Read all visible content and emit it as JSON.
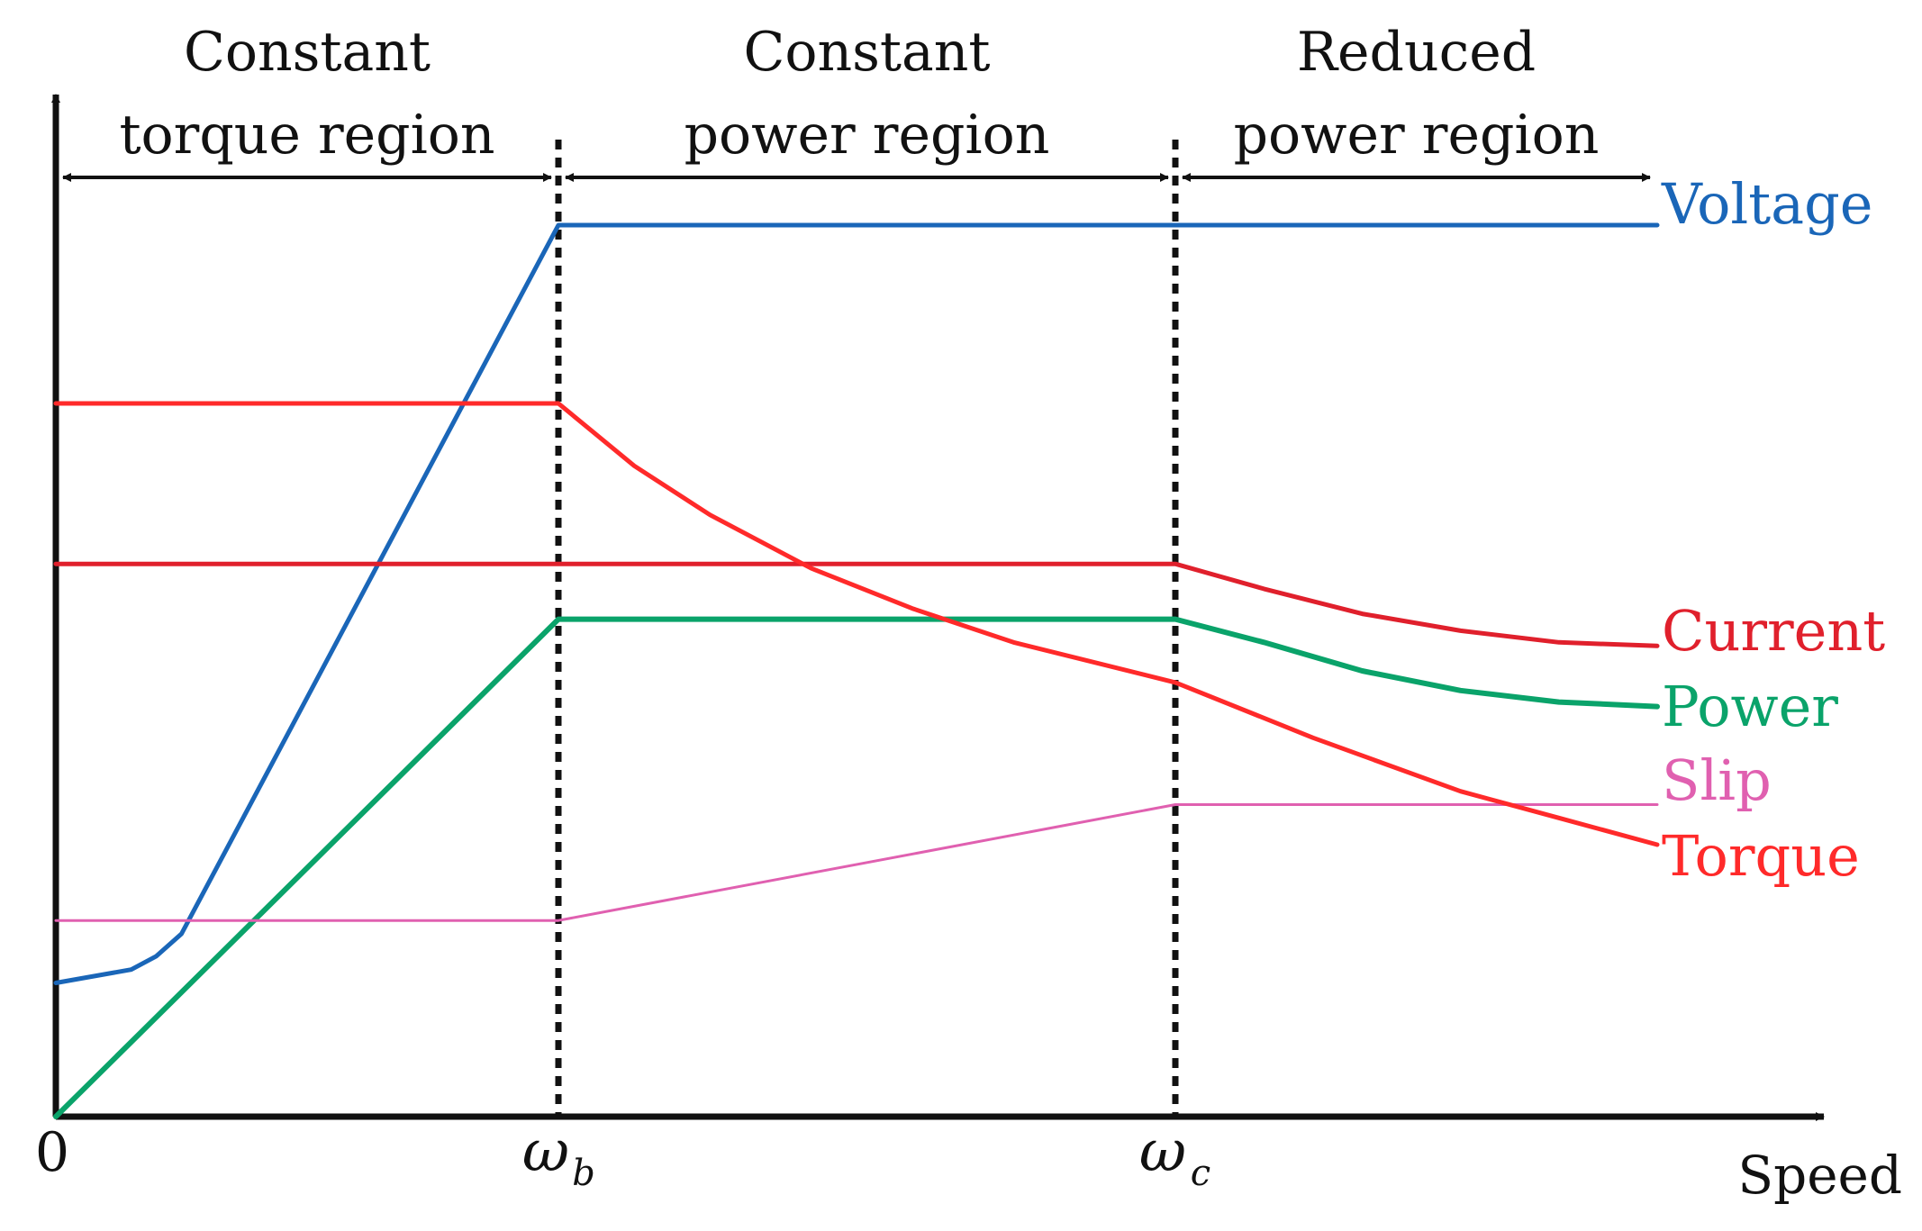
{
  "chart_data": {
    "type": "line",
    "title": "",
    "xlabel": "Speed",
    "ylabel": "",
    "x_ticks": [
      {
        "label": "0",
        "value": 0
      },
      {
        "label": "ω",
        "sub": "b",
        "value": 1.0
      },
      {
        "label": "ω",
        "sub": "c",
        "value": 2.22
      }
    ],
    "xlim": [
      0,
      3.55
    ],
    "ylim": [
      0,
      1.05
    ],
    "regions": [
      {
        "line1": "Constant",
        "line2": "torque region",
        "from": 0,
        "to": 1.0
      },
      {
        "line1": "Constant",
        "line2": "power region",
        "from": 1.0,
        "to": 2.22
      },
      {
        "line1": "Reduced",
        "line2": "power region",
        "from": 2.22,
        "to": 3.2
      }
    ],
    "series": [
      {
        "name": "Voltage",
        "color": "#1a66b8",
        "x": [
          0,
          0.15,
          0.2,
          0.25,
          1.0,
          3.2
        ],
        "y": [
          0.15,
          0.165,
          0.18,
          0.205,
          1.0,
          1.0
        ]
      },
      {
        "name": "Current",
        "color": "#e0202c",
        "x": [
          0,
          2.22,
          2.4,
          2.6,
          2.8,
          3.0,
          3.2
        ],
        "y": [
          0.62,
          0.62,
          0.592,
          0.564,
          0.545,
          0.532,
          0.528
        ]
      },
      {
        "name": "Power",
        "color": "#0aa36a",
        "x": [
          0,
          1.0,
          2.22,
          2.4,
          2.6,
          2.8,
          3.0,
          3.2
        ],
        "y": [
          0,
          0.558,
          0.558,
          0.532,
          0.5,
          0.478,
          0.465,
          0.46
        ]
      },
      {
        "name": "Slip",
        "color": "#e060b0",
        "x": [
          0,
          1.0,
          2.22,
          3.2
        ],
        "y": [
          0.22,
          0.22,
          0.35,
          0.35
        ]
      },
      {
        "name": "Torque",
        "color": "#ff2a2a",
        "x": [
          0,
          1.0,
          1.15,
          1.3,
          1.5,
          1.7,
          1.9,
          2.22,
          2.5,
          2.8,
          3.0,
          3.2
        ],
        "y": [
          0.8,
          0.8,
          0.73,
          0.675,
          0.615,
          0.57,
          0.532,
          0.487,
          0.425,
          0.365,
          0.335,
          0.305
        ]
      }
    ]
  }
}
